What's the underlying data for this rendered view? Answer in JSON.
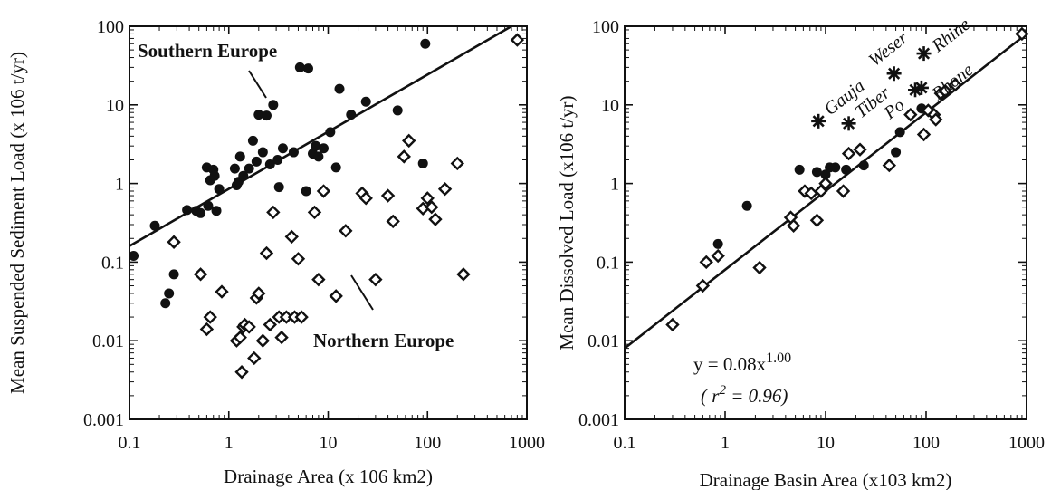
{
  "chart_data": [
    {
      "type": "scatter",
      "xlabel": "Drainage Area (x 106 km2)",
      "ylabel": "Mean Suspended Sediment Load (x 106 t/yr)",
      "xscale": "log",
      "yscale": "log",
      "xlim": [
        0.1,
        1000
      ],
      "ylim": [
        0.001,
        100
      ],
      "xticks": [
        "0.1",
        "1",
        "10",
        "100",
        "1000"
      ],
      "yticks": [
        "0.001",
        "0.01",
        "0.1",
        "1",
        "10",
        "100"
      ],
      "annotations": [
        "Southern Europe",
        "Northern Europe"
      ],
      "series": [
        {
          "marker": "filled-circle",
          "points": [
            [
              0.11,
              0.12
            ],
            [
              0.18,
              0.29
            ],
            [
              0.23,
              0.03
            ],
            [
              0.25,
              0.04
            ],
            [
              0.28,
              0.07
            ],
            [
              0.38,
              0.46
            ],
            [
              0.47,
              0.45
            ],
            [
              0.52,
              0.42
            ],
            [
              0.6,
              1.6
            ],
            [
              0.62,
              0.52
            ],
            [
              0.65,
              1.1
            ],
            [
              0.7,
              1.5
            ],
            [
              0.72,
              1.25
            ],
            [
              0.75,
              0.45
            ],
            [
              0.8,
              0.85
            ],
            [
              1.15,
              1.55
            ],
            [
              1.2,
              0.95
            ],
            [
              1.25,
              1.05
            ],
            [
              1.3,
              2.2
            ],
            [
              1.4,
              1.25
            ],
            [
              1.6,
              1.55
            ],
            [
              1.75,
              3.5
            ],
            [
              1.9,
              1.9
            ],
            [
              2.0,
              7.5
            ],
            [
              2.2,
              2.5
            ],
            [
              2.4,
              7.3
            ],
            [
              2.6,
              1.75
            ],
            [
              2.8,
              10
            ],
            [
              3.1,
              2.0
            ],
            [
              3.2,
              0.9
            ],
            [
              3.5,
              2.8
            ],
            [
              4.5,
              2.5
            ],
            [
              5.2,
              30
            ],
            [
              6.0,
              0.8
            ],
            [
              6.3,
              29
            ],
            [
              7.0,
              2.4
            ],
            [
              7.5,
              3.0
            ],
            [
              8.0,
              2.2
            ],
            [
              9.0,
              2.8
            ],
            [
              10.5,
              4.5
            ],
            [
              12,
              1.6
            ],
            [
              13,
              16
            ],
            [
              17,
              7.5
            ],
            [
              24,
              11
            ],
            [
              50,
              8.5
            ],
            [
              90,
              1.8
            ],
            [
              95,
              60
            ]
          ]
        },
        {
          "marker": "open-diamond",
          "points": [
            [
              0.28,
              0.18
            ],
            [
              0.52,
              0.07
            ],
            [
              0.6,
              0.014
            ],
            [
              0.65,
              0.02
            ],
            [
              0.85,
              0.042
            ],
            [
              1.2,
              0.01
            ],
            [
              1.3,
              0.011
            ],
            [
              1.35,
              0.004
            ],
            [
              1.4,
              0.015
            ],
            [
              1.45,
              0.016
            ],
            [
              1.6,
              0.015
            ],
            [
              1.8,
              0.006
            ],
            [
              1.9,
              0.035
            ],
            [
              2.0,
              0.04
            ],
            [
              2.2,
              0.01
            ],
            [
              2.4,
              0.13
            ],
            [
              2.6,
              0.016
            ],
            [
              2.8,
              0.43
            ],
            [
              3.2,
              0.02
            ],
            [
              3.4,
              0.011
            ],
            [
              3.8,
              0.02
            ],
            [
              4.3,
              0.21
            ],
            [
              4.6,
              0.02
            ],
            [
              5.0,
              0.11
            ],
            [
              5.4,
              0.02
            ],
            [
              7.3,
              0.43
            ],
            [
              8.0,
              0.06
            ],
            [
              9.0,
              0.8
            ],
            [
              12,
              0.037
            ],
            [
              15,
              0.25
            ],
            [
              22,
              0.75
            ],
            [
              24,
              0.65
            ],
            [
              30,
              0.06
            ],
            [
              40,
              0.7
            ],
            [
              45,
              0.33
            ],
            [
              58,
              2.2
            ],
            [
              65,
              3.5
            ],
            [
              90,
              0.48
            ],
            [
              100,
              0.65
            ],
            [
              110,
              0.5
            ],
            [
              120,
              0.35
            ],
            [
              150,
              0.85
            ],
            [
              200,
              1.8
            ],
            [
              230,
              0.07
            ],
            [
              800,
              67
            ]
          ]
        }
      ],
      "fit_line": [
        [
          0.1,
          0.16
        ],
        [
          700,
          100
        ]
      ]
    },
    {
      "type": "scatter",
      "xlabel": "Drainage Basin Area (x103 km2)",
      "ylabel": "Mean Dissolved Load (x106 t/yr)",
      "xscale": "log",
      "yscale": "log",
      "xlim": [
        0.1,
        1000
      ],
      "ylim": [
        0.001,
        100
      ],
      "xticks": [
        "0.1",
        "1",
        "10",
        "100",
        "1000"
      ],
      "yticks": [
        "0.001",
        "0.01",
        "0.1",
        "1",
        "10",
        "100"
      ],
      "equation": {
        "main": "y = 0.08x",
        "exponent": "1.00",
        "r2_open": "( ",
        "r2_r": "r",
        "r2_sup": "2",
        "r2_val": " = 0.96)"
      },
      "series": [
        {
          "marker": "filled-circle",
          "points": [
            [
              0.85,
              0.17
            ],
            [
              1.65,
              0.52
            ],
            [
              5.5,
              1.5
            ],
            [
              8.2,
              1.4
            ],
            [
              10,
              1.3
            ],
            [
              11,
              1.6
            ],
            [
              12.5,
              1.6
            ],
            [
              16,
              1.5
            ],
            [
              24,
              1.7
            ],
            [
              50,
              2.5
            ],
            [
              55,
              4.5
            ],
            [
              90,
              9.0
            ]
          ]
        },
        {
          "marker": "open-diamond",
          "points": [
            [
              0.3,
              0.016
            ],
            [
              0.6,
              0.05
            ],
            [
              0.65,
              0.1
            ],
            [
              0.85,
              0.12
            ],
            [
              2.2,
              0.085
            ],
            [
              4.5,
              0.37
            ],
            [
              4.8,
              0.29
            ],
            [
              6.2,
              0.8
            ],
            [
              7.2,
              0.75
            ],
            [
              8.2,
              0.34
            ],
            [
              9.0,
              0.8
            ],
            [
              10,
              1.0
            ],
            [
              15,
              0.8
            ],
            [
              17,
              2.4
            ],
            [
              22,
              2.7
            ],
            [
              43,
              1.7
            ],
            [
              70,
              7.5
            ],
            [
              95,
              4.2
            ],
            [
              105,
              8.5
            ],
            [
              120,
              7.5
            ],
            [
              125,
              6.5
            ],
            [
              140,
              14
            ],
            [
              155,
              15
            ],
            [
              195,
              18
            ],
            [
              900,
              80
            ]
          ]
        },
        {
          "marker": "asterisk",
          "points": [
            {
              "x": 8.5,
              "y": 6.2,
              "label": "Gauja"
            },
            {
              "x": 17,
              "y": 5.8,
              "label": "Tiber"
            },
            {
              "x": 48,
              "y": 25,
              "label": "Weser"
            },
            {
              "x": 78,
              "y": 15.5,
              "label": "Po"
            },
            {
              "x": 90,
              "y": 16.5,
              "label": "Rhone"
            },
            {
              "x": 95,
              "y": 45,
              "label": "Rhine"
            }
          ]
        }
      ],
      "fit_line": [
        [
          0.1,
          0.008
        ],
        [
          1000,
          80
        ]
      ]
    }
  ]
}
